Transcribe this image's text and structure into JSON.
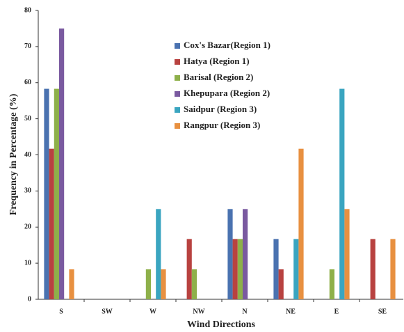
{
  "chart_data": {
    "type": "bar",
    "x_label": "Wind Directions",
    "y_label": "Frequency in Percentage (%)",
    "categories": [
      "S",
      "SW",
      "W",
      "NW",
      "N",
      "NE",
      "E",
      "SE"
    ],
    "series": [
      {
        "name": "Cox's Bazar(Region 1)",
        "color": "#4a72b0",
        "values": [
          58.3,
          0,
          0,
          0,
          25,
          16.7,
          0,
          0
        ]
      },
      {
        "name": "Hatya (Region 1)",
        "color": "#b84240",
        "values": [
          41.7,
          0,
          0,
          16.7,
          16.7,
          8.3,
          0,
          16.7
        ]
      },
      {
        "name": "Barisal (Region 2)",
        "color": "#8eb04a",
        "values": [
          58.3,
          0,
          8.3,
          8.3,
          16.7,
          0,
          8.3,
          0
        ]
      },
      {
        "name": "Khepupara (Region 2)",
        "color": "#7a5aa0",
        "values": [
          75,
          0,
          0,
          0,
          25,
          0,
          0,
          0
        ]
      },
      {
        "name": "Saidpur (Region 3)",
        "color": "#3aa5c0",
        "values": [
          0,
          0,
          25,
          0,
          0,
          16.7,
          58.3,
          0
        ]
      },
      {
        "name": "Rangpur (Region 3)",
        "color": "#e89040",
        "values": [
          8.3,
          0,
          8.3,
          0,
          0,
          41.7,
          25,
          16.7
        ]
      }
    ],
    "ylim": [
      0,
      80
    ],
    "yticks": [
      0,
      10,
      20,
      30,
      40,
      50,
      60,
      70,
      80
    ],
    "grid": false
  }
}
